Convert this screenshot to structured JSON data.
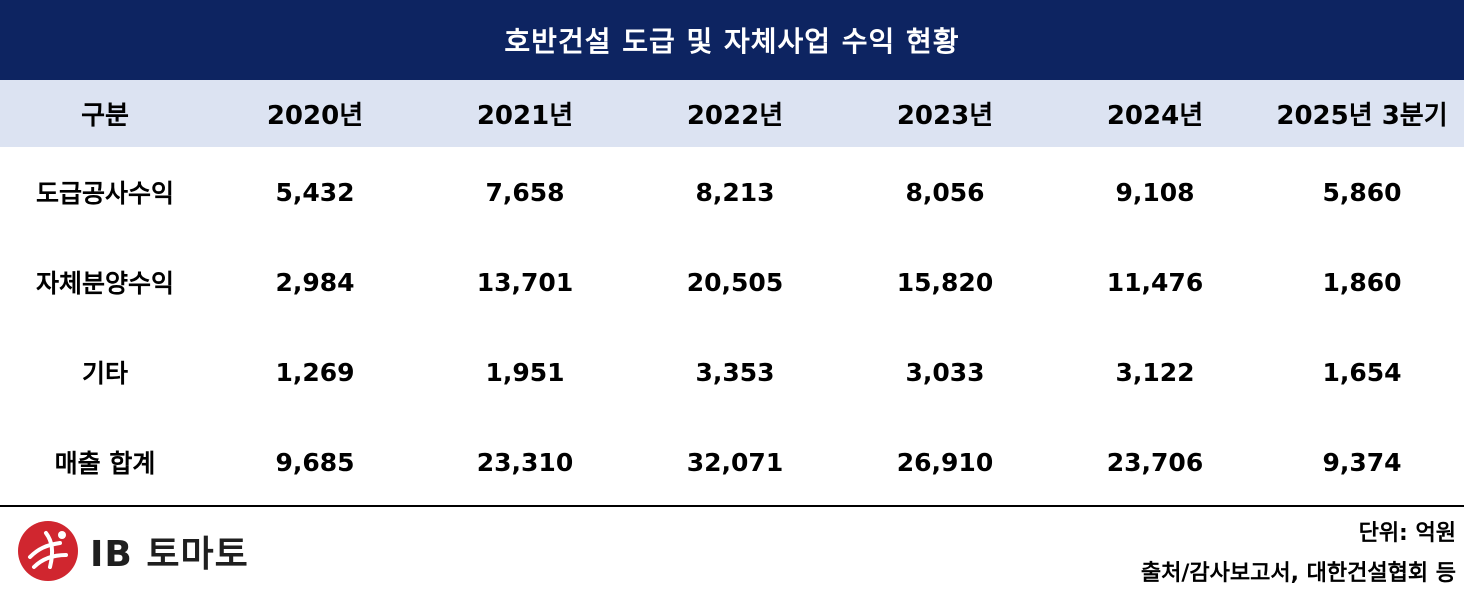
{
  "title": "호반건설 도급 및 자체사업 수익 현황",
  "table": {
    "headers": [
      "구분",
      "2020년",
      "2021년",
      "2022년",
      "2023년",
      "2024년",
      "2025년 3분기"
    ],
    "rows": [
      [
        "도급공사수익",
        "5,432",
        "7,658",
        "8,213",
        "8,056",
        "9,108",
        "5,860"
      ],
      [
        "자체분양수익",
        "2,984",
        "13,701",
        "20,505",
        "15,820",
        "11,476",
        "1,860"
      ],
      [
        "기타",
        "1,269",
        "1,951",
        "3,353",
        "3,033",
        "3,122",
        "1,654"
      ],
      [
        "매출 합계",
        "9,685",
        "23,310",
        "32,071",
        "26,910",
        "23,706",
        "9,374"
      ]
    ]
  },
  "footer": {
    "unit": "단위: 억원",
    "source": "출처/감사보고서, 대한건설협회 등"
  },
  "logo": {
    "text": "IB 토마토",
    "icon": "ib-tomato-logo-icon",
    "color": "#d0262f"
  },
  "colors": {
    "title_bg": "#0d2461",
    "header_bg": "#dce3f2"
  }
}
